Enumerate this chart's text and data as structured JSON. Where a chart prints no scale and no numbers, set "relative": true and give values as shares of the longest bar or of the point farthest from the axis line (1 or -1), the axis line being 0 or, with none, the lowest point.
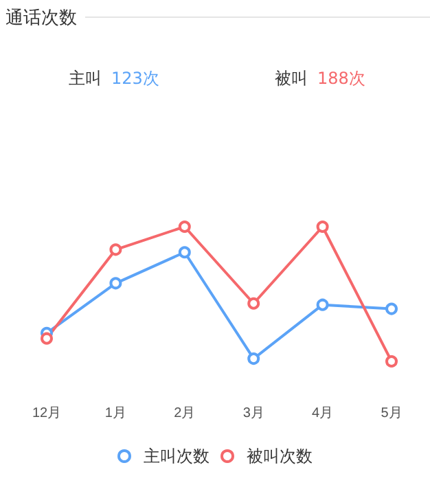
{
  "chart_data": {
    "type": "line",
    "title": "通话次数",
    "annotations": [
      "主叫 123次",
      "被叫 188次"
    ],
    "categories": [
      "12月",
      "1月",
      "2月",
      "3月",
      "4月",
      "5月"
    ],
    "relative": true,
    "series": [
      {
        "name": "主叫次数",
        "color": "#5ba3f7",
        "values": [
          0.21,
          0.58,
          0.81,
          0.02,
          0.42,
          0.39
        ]
      },
      {
        "name": "被叫次数",
        "color": "#f5686b",
        "values": [
          0.17,
          0.83,
          1,
          0.43,
          1,
          0
        ]
      }
    ],
    "marker": "circle",
    "legend": "bottom",
    "grid": false
  }
}
